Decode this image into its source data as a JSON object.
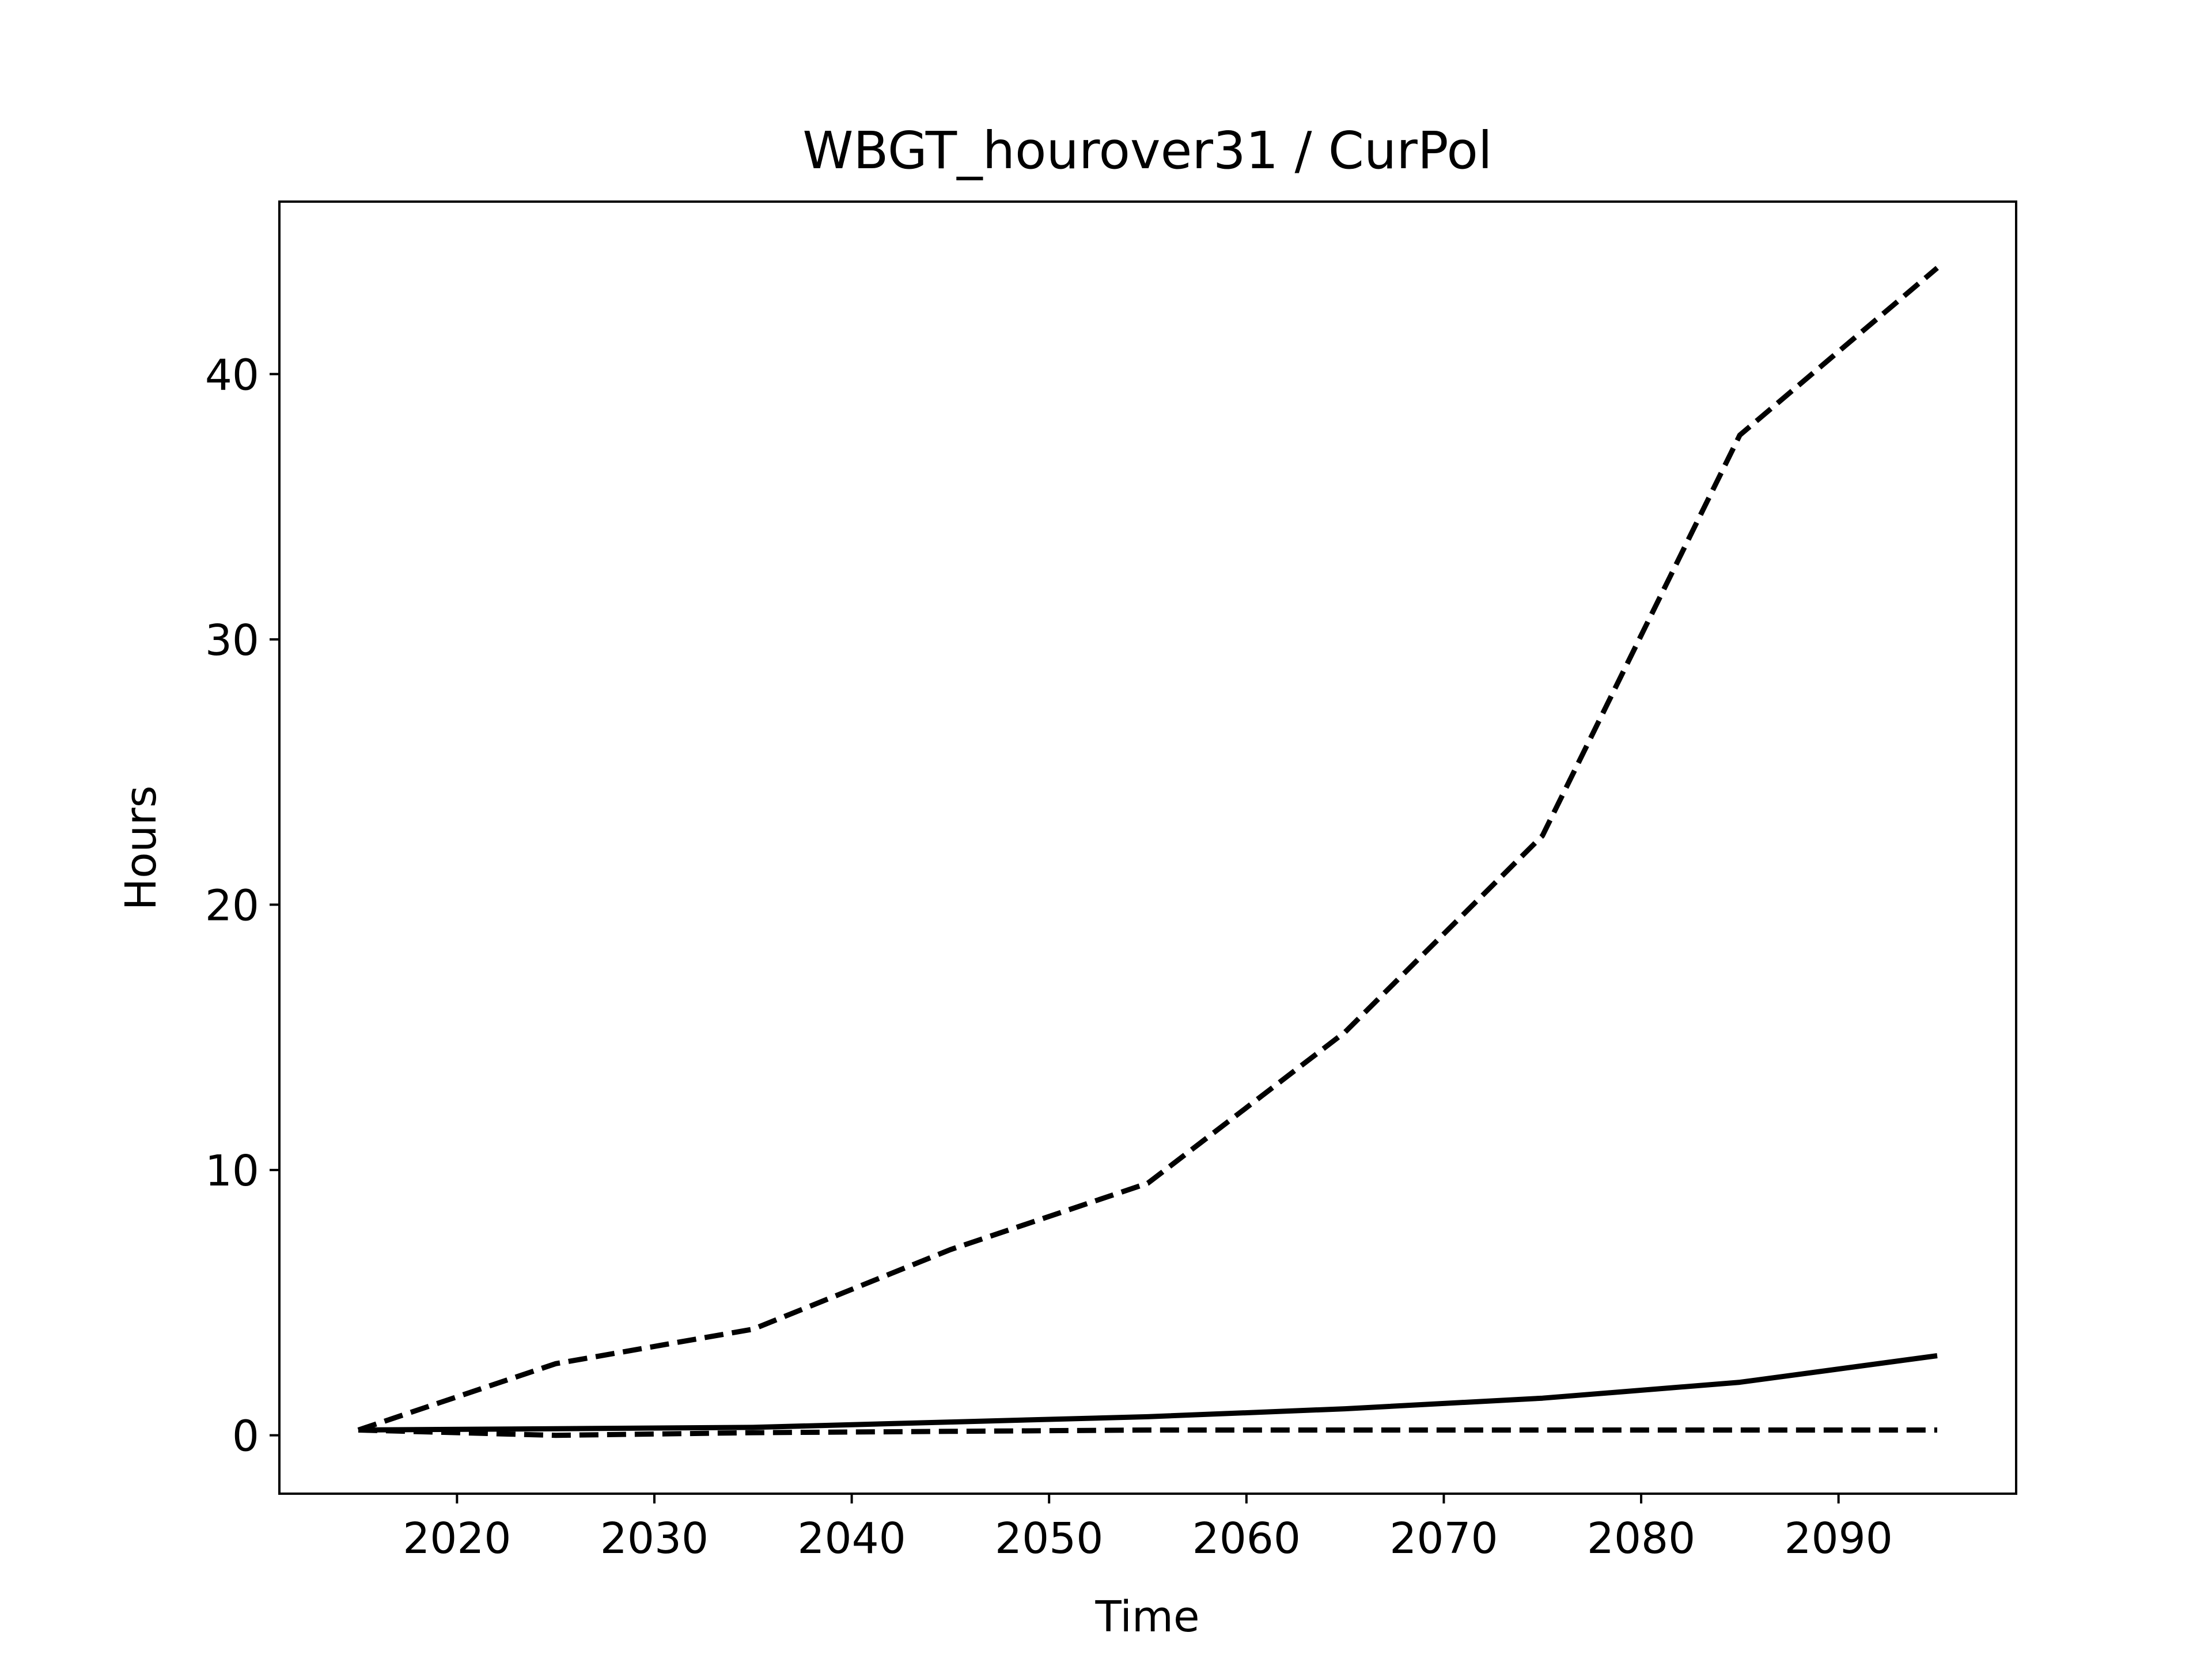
{
  "chart_data": {
    "type": "line",
    "title": "WBGT_hourover31 / CurPol",
    "xlabel": "Time",
    "ylabel": "Hours",
    "xlim": [
      2011,
      2099
    ],
    "ylim": [
      -2.2,
      46.5
    ],
    "xticks": [
      2020,
      2030,
      2040,
      2050,
      2060,
      2070,
      2080,
      2090
    ],
    "yticks": [
      0,
      10,
      20,
      30,
      40
    ],
    "grid": false,
    "legend": "none",
    "x": [
      2015,
      2025,
      2035,
      2045,
      2055,
      2065,
      2075,
      2085,
      2095
    ],
    "series": [
      {
        "style": "solid",
        "color": "#000000",
        "values": [
          0.2,
          0.25,
          0.3,
          0.5,
          0.7,
          1.0,
          1.4,
          2.0,
          3.0
        ]
      },
      {
        "style": "dashed",
        "color": "#000000",
        "values": [
          0.2,
          2.7,
          4.0,
          7.0,
          9.5,
          15.2,
          22.6,
          37.7,
          44.0
        ]
      },
      {
        "style": "dashed",
        "color": "#000000",
        "values": [
          0.2,
          0.0,
          0.1,
          0.15,
          0.2,
          0.2,
          0.2,
          0.2,
          0.2
        ]
      }
    ]
  }
}
